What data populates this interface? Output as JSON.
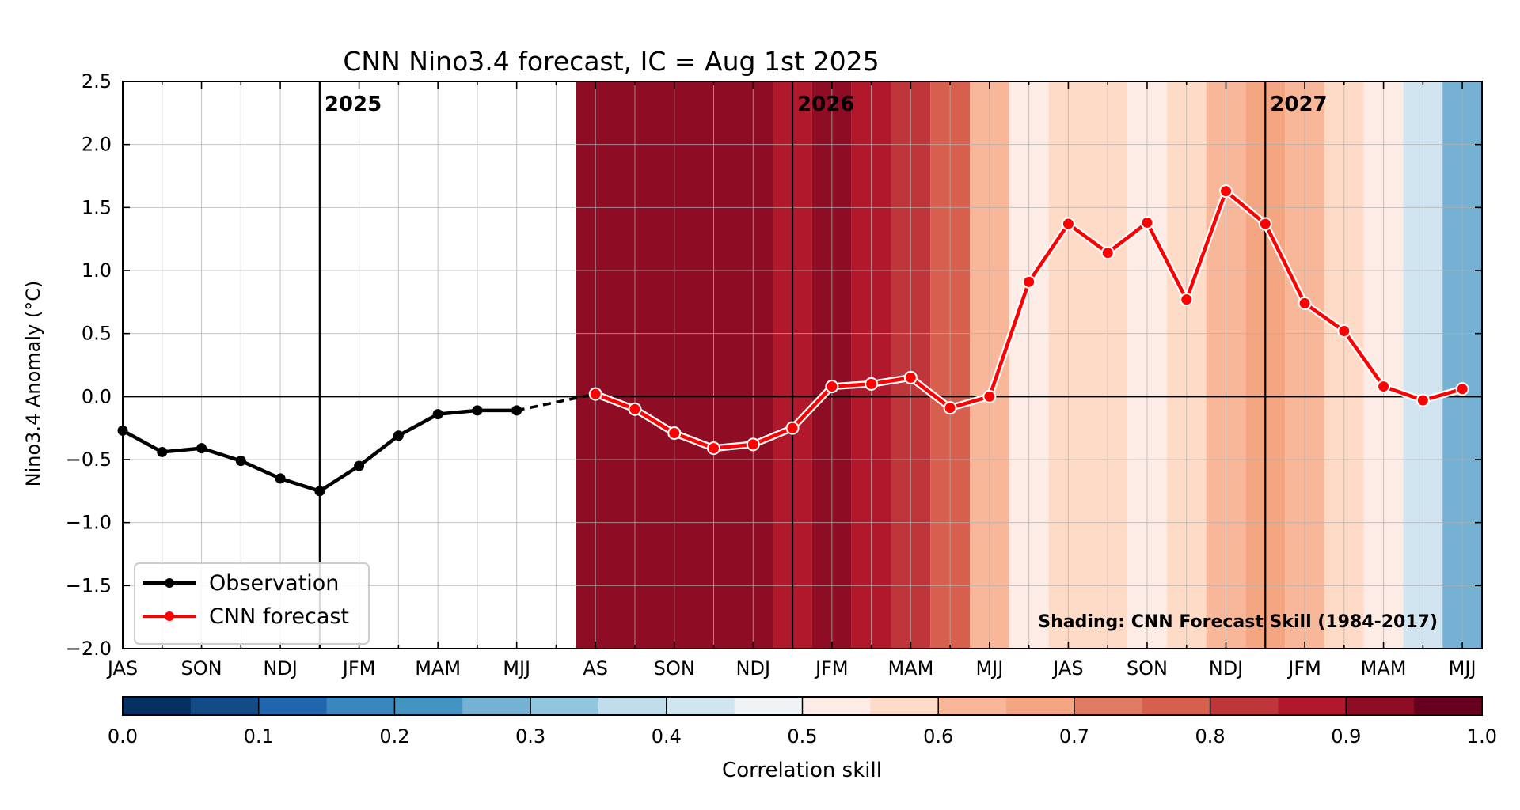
{
  "chart_data": {
    "type": "line",
    "title": "CNN Nino3.4 forecast, IC = Aug 1st 2025",
    "ylabel": "Nino3.4 Anomaly (°C)",
    "ylim": [
      -2.0,
      2.5
    ],
    "yticks": [
      -2.0,
      -1.5,
      -1.0,
      -0.5,
      0.0,
      0.5,
      1.0,
      1.5,
      2.0,
      2.5
    ],
    "ytick_labels": [
      "−2.0",
      "−1.5",
      "−1.0",
      "−0.5",
      "0.0",
      "0.5",
      "1.0",
      "1.5",
      "2.0",
      "2.5"
    ],
    "xlim": [
      0,
      34.5
    ],
    "grid": true,
    "season_ticks": [
      {
        "x": 0,
        "label": "JAS"
      },
      {
        "x": 2,
        "label": "SON"
      },
      {
        "x": 4,
        "label": "NDJ"
      },
      {
        "x": 6,
        "label": "JFM"
      },
      {
        "x": 8,
        "label": "MAM"
      },
      {
        "x": 10,
        "label": "MJJ"
      },
      {
        "x": 12,
        "label": "AS"
      },
      {
        "x": 14,
        "label": "SON"
      },
      {
        "x": 16,
        "label": "NDJ"
      },
      {
        "x": 18,
        "label": "JFM"
      },
      {
        "x": 20,
        "label": "MAM"
      },
      {
        "x": 22,
        "label": "MJJ"
      },
      {
        "x": 24,
        "label": "JAS"
      },
      {
        "x": 26,
        "label": "SON"
      },
      {
        "x": 28,
        "label": "NDJ"
      },
      {
        "x": 30,
        "label": "JFM"
      },
      {
        "x": 32,
        "label": "MAM"
      },
      {
        "x": 34,
        "label": "MJJ"
      }
    ],
    "year_markers": [
      {
        "x": 5,
        "label": "2025"
      },
      {
        "x": 17,
        "label": "2026"
      },
      {
        "x": 29,
        "label": "2027"
      }
    ],
    "series": [
      {
        "name": "Observation",
        "color": "#000000",
        "x": [
          0,
          1,
          2,
          3,
          4,
          5,
          6,
          7,
          8,
          9,
          10
        ],
        "values": [
          -0.27,
          -0.44,
          -0.41,
          -0.51,
          -0.65,
          -0.75,
          -0.55,
          -0.31,
          -0.14,
          -0.11,
          -0.11
        ]
      },
      {
        "name": "CNN forecast",
        "color": "#ff0000",
        "x": [
          12,
          13,
          14,
          15,
          16,
          17,
          18,
          19,
          20,
          21,
          22,
          23,
          24,
          25,
          26,
          27,
          28,
          29,
          30,
          31,
          32,
          33,
          34
        ],
        "values": [
          0.02,
          -0.1,
          -0.29,
          -0.41,
          -0.38,
          -0.25,
          0.08,
          0.1,
          0.15,
          -0.09,
          0.0,
          0.91,
          1.37,
          1.14,
          1.38,
          0.77,
          1.63,
          1.37,
          0.74,
          0.52,
          0.08,
          -0.03,
          0.06
        ]
      }
    ],
    "bridge": {
      "from_x": 10,
      "from_y": -0.11,
      "to_x": 12,
      "to_y": 0.02,
      "style": "dashed"
    },
    "skill_shading": [
      {
        "x0": 11.5,
        "x1": 16.5,
        "skill": 0.92
      },
      {
        "x0": 16.5,
        "x1": 17.5,
        "skill": 0.87
      },
      {
        "x0": 17.5,
        "x1": 18.5,
        "skill": 0.92
      },
      {
        "x0": 18.5,
        "x1": 19.5,
        "skill": 0.87
      },
      {
        "x0": 19.5,
        "x1": 20.5,
        "skill": 0.82
      },
      {
        "x0": 20.5,
        "x1": 21.5,
        "skill": 0.76
      },
      {
        "x0": 21.5,
        "x1": 22.5,
        "skill": 0.62
      },
      {
        "x0": 22.5,
        "x1": 23.5,
        "skill": 0.53
      },
      {
        "x0": 23.5,
        "x1": 25.5,
        "skill": 0.57
      },
      {
        "x0": 25.5,
        "x1": 26.5,
        "skill": 0.53
      },
      {
        "x0": 26.5,
        "x1": 27.5,
        "skill": 0.57
      },
      {
        "x0": 27.5,
        "x1": 28.5,
        "skill": 0.62
      },
      {
        "x0": 28.5,
        "x1": 29.5,
        "skill": 0.68
      },
      {
        "x0": 29.5,
        "x1": 30.5,
        "skill": 0.62
      },
      {
        "x0": 30.5,
        "x1": 31.5,
        "skill": 0.57
      },
      {
        "x0": 31.5,
        "x1": 32.5,
        "skill": 0.53
      },
      {
        "x0": 32.5,
        "x1": 33.5,
        "skill": 0.43
      },
      {
        "x0": 33.5,
        "x1": 34.5,
        "skill": 0.27
      }
    ],
    "shading_note": "Shading: CNN Forecast Skill (1984-2017)",
    "legend": {
      "placement": "lower-left",
      "entries": [
        "Observation",
        "CNN forecast"
      ]
    },
    "colorbar": {
      "label": "Correlation skill",
      "range": [
        0.0,
        1.0
      ],
      "tick_values": [
        0.0,
        0.1,
        0.2,
        0.3,
        0.4,
        0.5,
        0.6,
        0.7,
        0.8,
        0.9,
        1.0
      ],
      "tick_labels": [
        "0.0",
        "0.1",
        "0.2",
        "0.3",
        "0.4",
        "0.5",
        "0.6",
        "0.7",
        "0.8",
        "0.9",
        "1.0"
      ],
      "colors": [
        "#053061",
        "#134b87",
        "#2166ac",
        "#3a87bd",
        "#4393c3",
        "#75b1d3",
        "#92c5de",
        "#c1ddeb",
        "#d1e5f0",
        "#eef3f6",
        "#fcece5",
        "#fddbc7",
        "#f8b799",
        "#f4a582",
        "#df7b63",
        "#d6604d",
        "#bf363a",
        "#b2182b",
        "#8f0c25",
        "#67001f"
      ]
    }
  }
}
